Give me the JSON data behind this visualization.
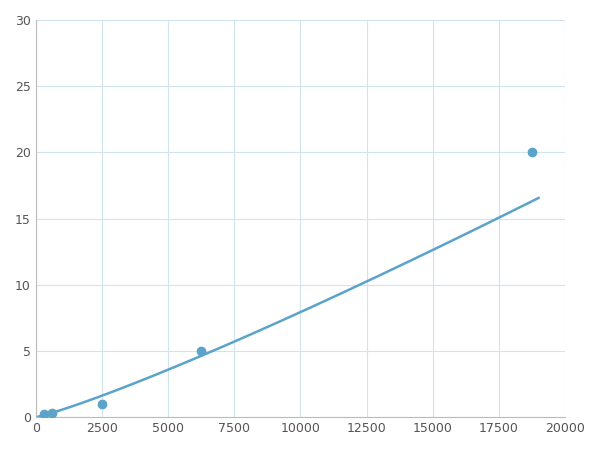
{
  "x": [
    312,
    625,
    2500,
    6250,
    18750
  ],
  "y": [
    0.2,
    0.3,
    1.0,
    5.0,
    20.0
  ],
  "line_color": "#5ba3c9",
  "marker_color": "#5ba3c9",
  "marker_size": 6,
  "line_width": 1.8,
  "xlim": [
    0,
    20000
  ],
  "ylim": [
    0,
    30
  ],
  "xticks": [
    0,
    2500,
    5000,
    7500,
    10000,
    12500,
    15000,
    17500,
    20000
  ],
  "yticks": [
    0,
    5,
    10,
    15,
    20,
    25,
    30
  ],
  "grid_color": "#d0e4f0",
  "background_color": "#ffffff",
  "figsize": [
    6.0,
    4.5
  ],
  "dpi": 100
}
